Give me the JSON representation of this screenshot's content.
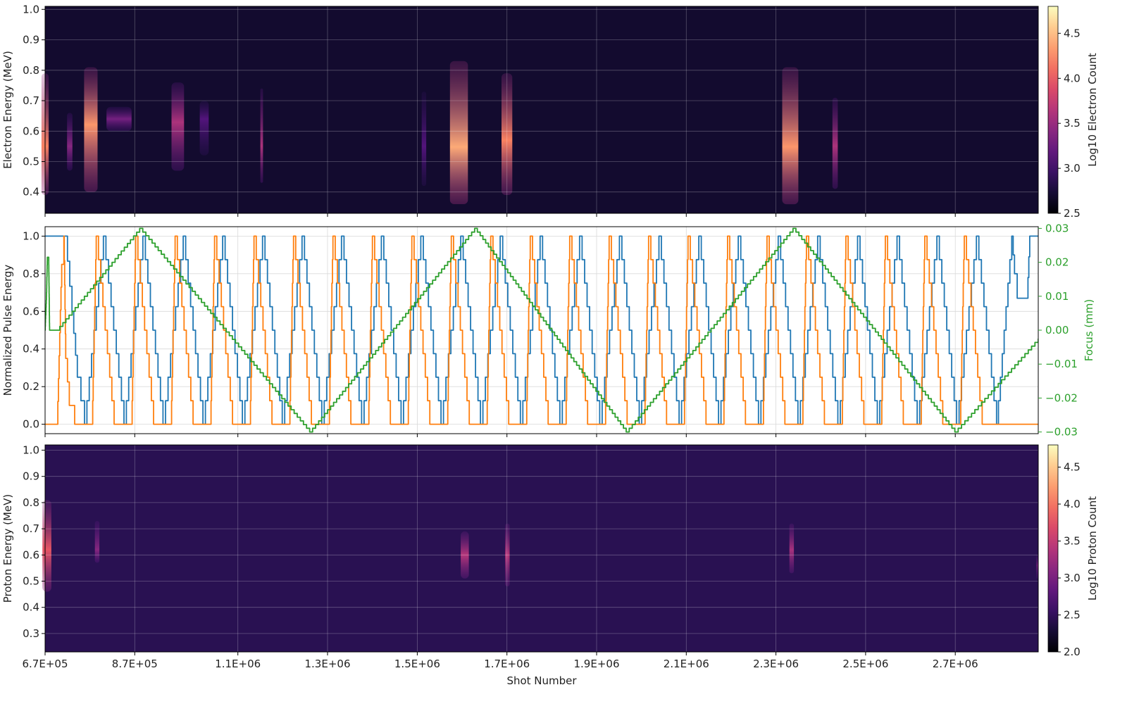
{
  "chart_data": [
    {
      "type": "heatmap",
      "ylabel": "Electron Energy (MeV)",
      "ylim": [
        0.33,
        1.01
      ],
      "yticks": [
        0.4,
        0.5,
        0.6,
        0.7,
        0.8,
        0.9,
        1.0
      ],
      "ytick_labels": [
        "0.4",
        "0.5",
        "0.6",
        "0.7",
        "0.8",
        "0.9",
        "1.0"
      ],
      "colorbar": {
        "label": "Log10 Electron Count",
        "range": [
          2.5,
          4.8
        ],
        "ticks": [
          2.5,
          3.0,
          3.5,
          4.0,
          4.5
        ],
        "tick_labels": [
          "2.5",
          "3.0",
          "3.5",
          "4.0",
          "4.5"
        ],
        "colormap": "magma"
      },
      "background_level": 2.7,
      "blobs": [
        {
          "x": 670000,
          "half_width": 8000,
          "e_min": 0.39,
          "e_max": 0.79,
          "peak_energy": 0.55,
          "peak_log": 4.2
        },
        {
          "x": 725000,
          "half_width": 6000,
          "e_min": 0.47,
          "e_max": 0.66,
          "peak_energy": 0.55,
          "peak_log": 3.4
        },
        {
          "x": 772000,
          "half_width": 15000,
          "e_min": 0.4,
          "e_max": 0.81,
          "peak_energy": 0.62,
          "peak_log": 4.3
        },
        {
          "x": 835000,
          "half_width": 28000,
          "e_min": 0.6,
          "e_max": 0.68,
          "peak_energy": 0.64,
          "peak_log": 3.3
        },
        {
          "x": 966000,
          "half_width": 14000,
          "e_min": 0.47,
          "e_max": 0.76,
          "peak_energy": 0.63,
          "peak_log": 3.6
        },
        {
          "x": 1025000,
          "half_width": 10000,
          "e_min": 0.52,
          "e_max": 0.7,
          "peak_energy": 0.64,
          "peak_log": 3.1
        },
        {
          "x": 1153000,
          "half_width": 3000,
          "e_min": 0.43,
          "e_max": 0.74,
          "peak_energy": 0.55,
          "peak_log": 3.6
        },
        {
          "x": 1515000,
          "half_width": 5000,
          "e_min": 0.42,
          "e_max": 0.73,
          "peak_energy": 0.55,
          "peak_log": 3.1
        },
        {
          "x": 1593000,
          "half_width": 20000,
          "e_min": 0.36,
          "e_max": 0.83,
          "peak_energy": 0.55,
          "peak_log": 4.4
        },
        {
          "x": 1700000,
          "half_width": 12000,
          "e_min": 0.39,
          "e_max": 0.79,
          "peak_energy": 0.57,
          "peak_log": 4.2
        },
        {
          "x": 2332000,
          "half_width": 18000,
          "e_min": 0.36,
          "e_max": 0.81,
          "peak_energy": 0.55,
          "peak_log": 4.3
        },
        {
          "x": 2432000,
          "half_width": 6000,
          "e_min": 0.41,
          "e_max": 0.71,
          "peak_energy": 0.55,
          "peak_log": 3.6
        }
      ]
    },
    {
      "type": "line",
      "ylabel": "Normalized Pulse Energy",
      "ylim": [
        -0.05,
        1.05
      ],
      "yticks": [
        0.0,
        0.2,
        0.4,
        0.6,
        0.8,
        1.0
      ],
      "ytick_labels": [
        "0.0",
        "0.2",
        "0.4",
        "0.6",
        "0.8",
        "1.0"
      ],
      "y2label": "Focus (mm)",
      "y2lim": [
        -0.0305,
        0.0305
      ],
      "y2ticks": [
        -0.03,
        -0.02,
        -0.01,
        0.0,
        0.01,
        0.02,
        0.03
      ],
      "y2tick_labels": [
        "−0.03",
        "−0.02",
        "−0.01",
        "0.00",
        "0.01",
        "0.02",
        "0.03"
      ],
      "series": [
        {
          "color": "#1f77b4",
          "axis": "left",
          "points": [
            [
              670000,
              1.0
            ],
            [
              715000,
              1.0
            ],
            [
              730000,
              0.6
            ],
            [
              742000,
              0.25
            ],
            [
              758000,
              0.0
            ],
            [
              800000,
              1.0
            ],
            [
              846000,
              0.0
            ],
            [
              888000,
              1.0
            ],
            [
              933000,
              0.0
            ],
            [
              978000,
              1.0
            ],
            [
              1022000,
              0.0
            ],
            [
              1066000,
              1.0
            ],
            [
              1110000,
              0.0
            ],
            [
              1155000,
              1.0
            ],
            [
              1199000,
              0.0
            ],
            [
              1243000,
              1.0
            ],
            [
              1287000,
              0.0
            ],
            [
              1331000,
              1.0
            ],
            [
              1376000,
              0.0
            ],
            [
              1420000,
              1.0
            ],
            [
              1464000,
              0.0
            ],
            [
              1508000,
              1.0
            ],
            [
              1553000,
              0.0
            ],
            [
              1597000,
              1.0
            ],
            [
              1641000,
              0.0
            ],
            [
              1685000,
              1.0
            ],
            [
              1730000,
              0.0
            ],
            [
              1774000,
              1.0
            ],
            [
              1818000,
              0.0
            ],
            [
              1862000,
              1.0
            ],
            [
              1907000,
              0.0
            ],
            [
              1951000,
              1.0
            ],
            [
              1995000,
              0.0
            ],
            [
              2039000,
              1.0
            ],
            [
              2084000,
              0.0
            ],
            [
              2128000,
              1.0
            ],
            [
              2172000,
              0.0
            ],
            [
              2216000,
              1.0
            ],
            [
              2261000,
              0.0
            ],
            [
              2305000,
              1.0
            ],
            [
              2349000,
              0.0
            ],
            [
              2393000,
              1.0
            ],
            [
              2438000,
              0.0
            ],
            [
              2482000,
              1.0
            ],
            [
              2526000,
              0.0
            ],
            [
              2570000,
              1.0
            ],
            [
              2615000,
              0.0
            ],
            [
              2659000,
              1.0
            ],
            [
              2703000,
              0.0
            ],
            [
              2747000,
              1.0
            ],
            [
              2792000,
              0.0
            ],
            [
              2826000,
              1.0
            ],
            [
              2832000,
              0.8
            ],
            [
              2838000,
              0.67
            ],
            [
              2860000,
              0.67
            ],
            [
              2866000,
              1.0
            ],
            [
              2885000,
              1.0
            ]
          ]
        },
        {
          "color": "#ff7f0e",
          "axis": "left",
          "points": [
            [
              670000,
              0.0
            ],
            [
              697000,
              0.0
            ],
            [
              707000,
              0.85
            ],
            [
              712000,
              1.0
            ],
            [
              716000,
              0.35
            ],
            [
              724000,
              0.1
            ],
            [
              736000,
              0.0
            ],
            [
              775000,
              0.0
            ],
            [
              784000,
              1.0
            ],
            [
              824000,
              0.0
            ],
            [
              863000,
              0.0
            ],
            [
              872000,
              1.0
            ],
            [
              912000,
              0.0
            ],
            [
              951000,
              0.0
            ],
            [
              960000,
              1.0
            ],
            [
              1000000,
              0.0
            ],
            [
              1039000,
              0.0
            ],
            [
              1048000,
              1.0
            ],
            [
              1088000,
              0.0
            ],
            [
              1127000,
              0.0
            ],
            [
              1136000,
              1.0
            ],
            [
              1176000,
              0.0
            ],
            [
              1215000,
              0.0
            ],
            [
              1224000,
              1.0
            ],
            [
              1264000,
              0.0
            ],
            [
              1303000,
              0.0
            ],
            [
              1312000,
              1.0
            ],
            [
              1352000,
              0.0
            ],
            [
              1391000,
              0.0
            ],
            [
              1400000,
              1.0
            ],
            [
              1440000,
              0.0
            ],
            [
              1479000,
              0.0
            ],
            [
              1488000,
              1.0
            ],
            [
              1528000,
              0.0
            ],
            [
              1567000,
              0.0
            ],
            [
              1576000,
              1.0
            ],
            [
              1616000,
              0.0
            ],
            [
              1655000,
              0.0
            ],
            [
              1664000,
              1.0
            ],
            [
              1704000,
              0.0
            ],
            [
              1743000,
              0.0
            ],
            [
              1752000,
              1.0
            ],
            [
              1792000,
              0.0
            ],
            [
              1831000,
              0.0
            ],
            [
              1840000,
              1.0
            ],
            [
              1880000,
              0.0
            ],
            [
              1919000,
              0.0
            ],
            [
              1928000,
              1.0
            ],
            [
              1968000,
              0.0
            ],
            [
              2007000,
              0.0
            ],
            [
              2016000,
              1.0
            ],
            [
              2056000,
              0.0
            ],
            [
              2095000,
              0.0
            ],
            [
              2104000,
              1.0
            ],
            [
              2144000,
              0.0
            ],
            [
              2183000,
              0.0
            ],
            [
              2192000,
              1.0
            ],
            [
              2232000,
              0.0
            ],
            [
              2271000,
              0.0
            ],
            [
              2280000,
              1.0
            ],
            [
              2320000,
              0.0
            ],
            [
              2359000,
              0.0
            ],
            [
              2368000,
              1.0
            ],
            [
              2408000,
              0.0
            ],
            [
              2447000,
              0.0
            ],
            [
              2456000,
              1.0
            ],
            [
              2496000,
              0.0
            ],
            [
              2535000,
              0.0
            ],
            [
              2544000,
              1.0
            ],
            [
              2584000,
              0.0
            ],
            [
              2623000,
              0.0
            ],
            [
              2632000,
              1.0
            ],
            [
              2672000,
              0.0
            ],
            [
              2711000,
              0.0
            ],
            [
              2720000,
              1.0
            ],
            [
              2760000,
              0.0
            ],
            [
              2885000,
              0.0
            ]
          ]
        },
        {
          "color": "#2ca02c",
          "axis": "right",
          "points": [
            [
              670000,
              0.0
            ],
            [
              673000,
              0.01
            ],
            [
              675000,
              0.0215
            ],
            [
              678000,
              0.0215
            ],
            [
              680000,
              0.0
            ],
            [
              696000,
              0.0
            ],
            [
              881000,
              0.03
            ],
            [
              1260000,
              -0.03
            ],
            [
              1628000,
              0.03
            ],
            [
              1966000,
              -0.03
            ],
            [
              2338000,
              0.03
            ],
            [
              2699000,
              -0.03
            ],
            [
              2885000,
              -0.0025
            ]
          ]
        }
      ]
    },
    {
      "type": "heatmap",
      "xlabel": "Shot Number",
      "ylabel": "Proton Energy (MeV)",
      "ylim": [
        0.23,
        1.02
      ],
      "yticks": [
        0.3,
        0.4,
        0.5,
        0.6,
        0.7,
        0.8,
        0.9,
        1.0
      ],
      "ytick_labels": [
        "0.3",
        "0.4",
        "0.5",
        "0.6",
        "0.7",
        "0.8",
        "0.9",
        "1.0"
      ],
      "xlim": [
        670000,
        2885000
      ],
      "xticks": [
        670000,
        870000,
        1100000,
        1300000,
        1500000,
        1700000,
        1900000,
        2100000,
        2300000,
        2500000,
        2700000
      ],
      "xtick_labels": [
        "6.7E+05",
        "8.7E+05",
        "1.1E+06",
        "1.3E+06",
        "1.5E+06",
        "1.7E+06",
        "1.9E+06",
        "2.1E+06",
        "2.3E+06",
        "2.5E+06",
        "2.7E+06"
      ],
      "colorbar": {
        "label": "Log10 Proton Count",
        "range": [
          2.0,
          4.8
        ],
        "ticks": [
          2.0,
          2.5,
          3.0,
          3.5,
          4.0,
          4.5
        ],
        "tick_labels": [
          "2.0",
          "2.5",
          "3.0",
          "3.5",
          "4.0",
          "4.5"
        ],
        "colormap": "magma"
      },
      "background_level": 2.45,
      "blobs": [
        {
          "x": 674000,
          "half_width": 10000,
          "e_min": 0.46,
          "e_max": 0.81,
          "peak_energy": 0.62,
          "peak_log": 3.8
        },
        {
          "x": 786000,
          "half_width": 5000,
          "e_min": 0.57,
          "e_max": 0.73,
          "peak_energy": 0.62,
          "peak_log": 3.1
        },
        {
          "x": 1606000,
          "half_width": 9000,
          "e_min": 0.51,
          "e_max": 0.69,
          "peak_energy": 0.6,
          "peak_log": 3.4
        },
        {
          "x": 1701000,
          "half_width": 5000,
          "e_min": 0.48,
          "e_max": 0.72,
          "peak_energy": 0.6,
          "peak_log": 3.4
        },
        {
          "x": 2335000,
          "half_width": 5000,
          "e_min": 0.53,
          "e_max": 0.72,
          "peak_energy": 0.62,
          "peak_log": 3.3
        },
        {
          "x": 2883000,
          "half_width": 2000,
          "e_min": 0.51,
          "e_max": 0.6,
          "peak_energy": 0.56,
          "peak_log": 3.0
        }
      ]
    }
  ]
}
